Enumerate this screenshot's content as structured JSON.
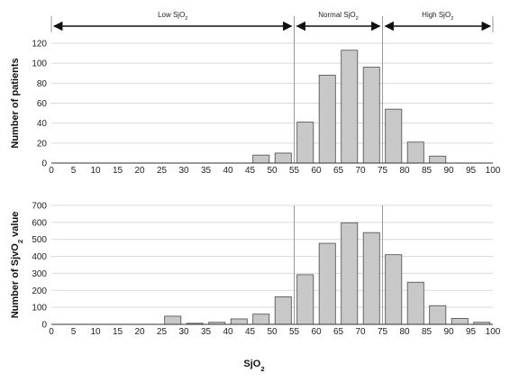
{
  "chart_data": [
    {
      "type": "bar",
      "ylabel": "Number of patients",
      "ylim": [
        0,
        120
      ],
      "yticks": [
        "0",
        "20",
        "40",
        "60",
        "80",
        "100",
        "120"
      ],
      "xlim": [
        0,
        100
      ],
      "xticks": [
        "0",
        "5",
        "10",
        "15",
        "20",
        "25",
        "30",
        "35",
        "40",
        "45",
        "50",
        "55",
        "60",
        "65",
        "70",
        "75",
        "80",
        "85",
        "90",
        "95",
        "100"
      ],
      "bins": [
        {
          "center": 2.5,
          "value": 0
        },
        {
          "center": 7.5,
          "value": 0
        },
        {
          "center": 12.5,
          "value": 0
        },
        {
          "center": 17.5,
          "value": 0
        },
        {
          "center": 22.5,
          "value": 0
        },
        {
          "center": 27.5,
          "value": 0
        },
        {
          "center": 32.5,
          "value": 0
        },
        {
          "center": 37.5,
          "value": 0
        },
        {
          "center": 42.5,
          "value": 0
        },
        {
          "center": 47.5,
          "value": 8
        },
        {
          "center": 52.5,
          "value": 10
        },
        {
          "center": 57.5,
          "value": 41
        },
        {
          "center": 62.5,
          "value": 88
        },
        {
          "center": 67.5,
          "value": 113
        },
        {
          "center": 72.5,
          "value": 96
        },
        {
          "center": 77.5,
          "value": 54
        },
        {
          "center": 82.5,
          "value": 21
        },
        {
          "center": 87.5,
          "value": 7
        },
        {
          "center": 92.5,
          "value": 0
        },
        {
          "center": 97.5,
          "value": 0
        }
      ],
      "region_labels": {
        "low": {
          "text": "Low SjO",
          "sub": "2"
        },
        "normal": {
          "text": "Normal SjO",
          "sub": "2"
        },
        "high": {
          "text": "High SjO",
          "sub": "2"
        }
      },
      "region_bounds": [
        0,
        55,
        75,
        100
      ],
      "grid": true
    },
    {
      "type": "bar",
      "ylabel": "Number of SjvO",
      "ylabel_sub": "2",
      "ylabel_after": " value",
      "xlabel": "SjO",
      "xlabel_sub": "2",
      "ylim": [
        0,
        700
      ],
      "yticks": [
        "0",
        "100",
        "200",
        "300",
        "400",
        "500",
        "600",
        "700"
      ],
      "xlim": [
        0,
        100
      ],
      "xticks": [
        "0",
        "5",
        "10",
        "15",
        "20",
        "25",
        "30",
        "35",
        "40",
        "45",
        "50",
        "55",
        "60",
        "65",
        "70",
        "75",
        "80",
        "85",
        "90",
        "95",
        "100"
      ],
      "bins": [
        {
          "center": 2.5,
          "value": 0
        },
        {
          "center": 7.5,
          "value": 0
        },
        {
          "center": 12.5,
          "value": 0
        },
        {
          "center": 17.5,
          "value": 0
        },
        {
          "center": 22.5,
          "value": 0
        },
        {
          "center": 27.5,
          "value": 48
        },
        {
          "center": 32.5,
          "value": 6
        },
        {
          "center": 37.5,
          "value": 12
        },
        {
          "center": 42.5,
          "value": 32
        },
        {
          "center": 47.5,
          "value": 60
        },
        {
          "center": 52.5,
          "value": 162
        },
        {
          "center": 57.5,
          "value": 292
        },
        {
          "center": 62.5,
          "value": 477
        },
        {
          "center": 67.5,
          "value": 598
        },
        {
          "center": 72.5,
          "value": 540
        },
        {
          "center": 77.5,
          "value": 410
        },
        {
          "center": 82.5,
          "value": 248
        },
        {
          "center": 87.5,
          "value": 110
        },
        {
          "center": 92.5,
          "value": 35
        },
        {
          "center": 97.5,
          "value": 12
        }
      ],
      "grid": true
    }
  ]
}
